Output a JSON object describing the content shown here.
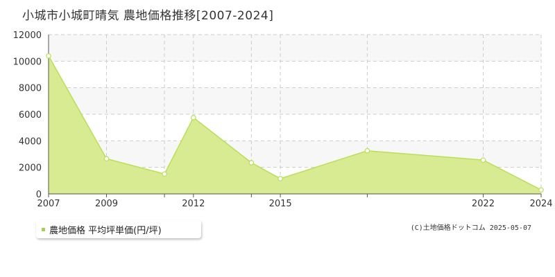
{
  "page": {
    "title": "小城市小城町晴気 農地価格推移[2007-2024]",
    "footer": "(C)土地価格ドットコム 2025-05-07"
  },
  "chart_data": {
    "type": "area",
    "title": "小城市小城町晴気 農地価格推移[2007-2024]",
    "x": [
      2007,
      2009,
      2011,
      2012,
      2014,
      2015,
      2018,
      2022,
      2024
    ],
    "series": [
      {
        "name": "農地価格 平均坪単価(円/坪)",
        "values": [
          10400,
          2650,
          1500,
          5750,
          2350,
          1150,
          3250,
          2550,
          300
        ]
      }
    ],
    "xlim": [
      2007,
      2024
    ],
    "ylim": [
      0,
      12000
    ],
    "yticks": [
      0,
      2000,
      4000,
      6000,
      8000,
      10000,
      12000
    ],
    "xtick_labels": [
      "2007",
      "2009",
      "2012",
      "2015",
      "2022",
      "2024"
    ],
    "legend": "bottom-left",
    "grid": true,
    "colors": {
      "fill": "#d8eb92",
      "line": "#b9df57",
      "marker_fill": "#ffffff",
      "band": "#f7f7f7",
      "grid": "#cccccc",
      "axis": "#555555"
    }
  }
}
